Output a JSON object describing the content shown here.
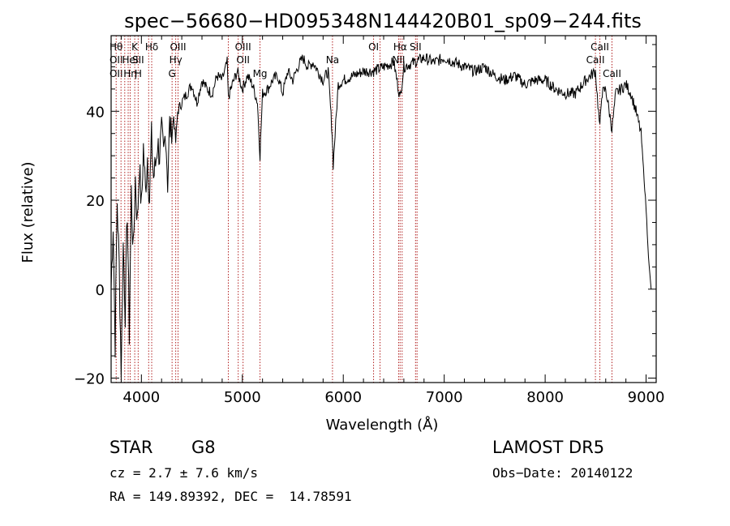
{
  "chart_data": {
    "type": "line",
    "title": "spec−56680−HD095348N144420B01_sp09−244.fits",
    "xlabel": "Wavelength (Å)",
    "ylabel": "Flux (relative)",
    "xlim": [
      3700,
      9100
    ],
    "ylim": [
      -21,
      57
    ],
    "xticks": [
      4000,
      5000,
      6000,
      7000,
      8000,
      9000
    ],
    "yticks": [
      -20,
      0,
      20,
      40
    ],
    "ytick_labels": [
      "−20",
      "0",
      "20",
      "40"
    ],
    "grid": false,
    "line_color": "#000000",
    "marker_color": "#b22222",
    "series": [
      {
        "x": [
          3700,
          3720,
          3740,
          3760,
          3780,
          3800,
          3820,
          3840,
          3860,
          3880,
          3900,
          3920,
          3940,
          3960,
          3980,
          4000,
          4020,
          4040,
          4060,
          4080,
          4100,
          4120,
          4140,
          4160,
          4180,
          4200,
          4220,
          4240,
          4260,
          4280,
          4300,
          4320,
          4340,
          4360,
          4380,
          4400,
          4450,
          4500,
          4550,
          4600,
          4650,
          4700,
          4750,
          4800,
          4850,
          4861,
          4900,
          4950,
          5000,
          5050,
          5100,
          5150,
          5175,
          5200,
          5250,
          5300,
          5350,
          5400,
          5450,
          5500,
          5550,
          5600,
          5650,
          5700,
          5750,
          5800,
          5850,
          5890,
          5900,
          5950,
          6000,
          6100,
          6200,
          6300,
          6400,
          6500,
          6563,
          6600,
          6700,
          6800,
          6900,
          7000,
          7100,
          7200,
          7300,
          7400,
          7500,
          7600,
          7700,
          7800,
          7900,
          8000,
          8100,
          8200,
          8300,
          8400,
          8498,
          8542,
          8560,
          8600,
          8662,
          8700,
          8750,
          8800,
          8850,
          8900,
          8950,
          8980,
          9000,
          9030,
          9050
        ],
        "values": [
          0,
          15,
          -12,
          20,
          5,
          -18,
          10,
          -5,
          18,
          -10,
          22,
          8,
          25,
          15,
          28,
          18,
          32,
          22,
          30,
          20,
          34,
          25,
          28,
          33,
          30,
          35,
          30,
          36,
          24,
          37,
          34,
          39,
          33,
          40,
          41,
          42,
          44,
          46,
          42,
          47,
          45,
          44,
          48,
          47,
          51,
          43,
          46,
          49,
          45,
          48,
          46,
          42,
          30,
          44,
          45,
          47,
          48,
          44,
          49,
          47,
          50,
          52,
          50,
          51,
          49,
          47,
          49,
          35,
          28,
          46,
          47,
          48,
          49,
          49,
          50,
          51,
          43,
          50,
          51,
          52,
          51,
          52,
          51,
          50,
          49,
          50,
          48,
          47,
          48,
          46,
          47,
          47,
          45,
          44,
          44,
          47,
          49,
          36,
          44,
          45,
          36,
          44,
          45,
          46,
          44,
          40,
          35,
          25,
          18,
          5,
          0
        ]
      }
    ],
    "line_markers": [
      {
        "x": 3750,
        "labels": [
          "Hθ",
          "OII",
          "OII"
        ]
      },
      {
        "x": 3798,
        "labels": [
          "",
          "",
          ""
        ]
      },
      {
        "x": 3835,
        "labels": [
          "",
          "",
          ""
        ]
      },
      {
        "x": 3869,
        "labels": [
          "",
          "",
          ""
        ]
      },
      {
        "x": 3889,
        "labels": [
          "",
          "HeI",
          "Hη"
        ]
      },
      {
        "x": 3934,
        "labels": [
          "K",
          "",
          ""
        ]
      },
      {
        "x": 3968,
        "labels": [
          "",
          "SII",
          "H"
        ]
      },
      {
        "x": 4072,
        "labels": [
          "",
          "",
          ""
        ]
      },
      {
        "x": 4102,
        "labels": [
          "Hδ",
          "",
          ""
        ]
      },
      {
        "x": 4304,
        "labels": [
          "",
          "",
          "G"
        ]
      },
      {
        "x": 4340,
        "labels": [
          "",
          "Hγ",
          ""
        ]
      },
      {
        "x": 4363,
        "labels": [
          "OIII",
          "",
          ""
        ]
      },
      {
        "x": 4861,
        "labels": [
          "",
          "",
          ""
        ]
      },
      {
        "x": 4959,
        "labels": [
          "",
          "",
          ""
        ]
      },
      {
        "x": 5007,
        "labels": [
          "OIII",
          "OII",
          ""
        ]
      },
      {
        "x": 5175,
        "labels": [
          "",
          "",
          "Mg"
        ]
      },
      {
        "x": 5893,
        "labels": [
          "",
          "Na",
          ""
        ]
      },
      {
        "x": 6300,
        "labels": [
          "OI",
          "",
          ""
        ]
      },
      {
        "x": 6364,
        "labels": [
          "",
          "",
          ""
        ]
      },
      {
        "x": 6548,
        "labels": [
          "",
          "NII",
          ""
        ]
      },
      {
        "x": 6563,
        "labels": [
          "Hα",
          "",
          ""
        ]
      },
      {
        "x": 6583,
        "labels": [
          "",
          "",
          ""
        ]
      },
      {
        "x": 6716,
        "labels": [
          "SII",
          "",
          ""
        ]
      },
      {
        "x": 6731,
        "labels": [
          "",
          "",
          ""
        ]
      },
      {
        "x": 8498,
        "labels": [
          "",
          "CaII",
          ""
        ]
      },
      {
        "x": 8542,
        "labels": [
          "CaII",
          "",
          ""
        ]
      },
      {
        "x": 8662,
        "labels": [
          "",
          "",
          "CaII"
        ]
      }
    ]
  },
  "info": {
    "class": "STAR",
    "subclass": "G8",
    "survey": "LAMOST DR5",
    "cz": "cz = 2.7 ± 7.6 km/s",
    "obs_date": "Obs−Date: 20140122",
    "radec": "RA = 149.89392, DEC =  14.78591"
  }
}
